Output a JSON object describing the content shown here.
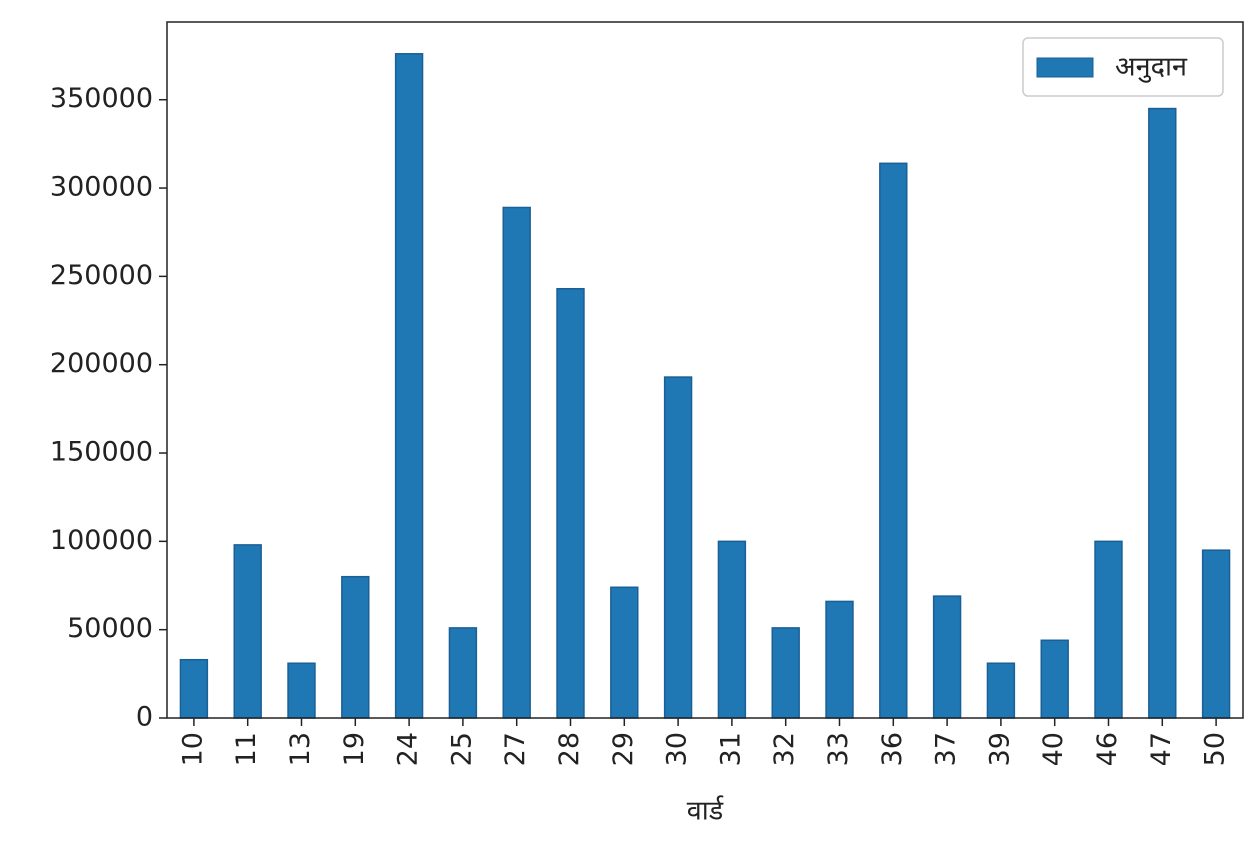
{
  "chart_data": {
    "type": "bar",
    "xlabel": "वार्ड",
    "categories": [
      "10",
      "11",
      "13",
      "19",
      "24",
      "25",
      "27",
      "28",
      "29",
      "30",
      "31",
      "32",
      "33",
      "36",
      "37",
      "39",
      "40",
      "46",
      "47",
      "50"
    ],
    "series": [
      {
        "name": "अनुदान",
        "color": "#1f77b4",
        "values": [
          33000,
          98000,
          31000,
          80000,
          376000,
          51000,
          289000,
          243000,
          74000,
          193000,
          100000,
          51000,
          66000,
          314000,
          69000,
          31000,
          44000,
          100000,
          345000,
          95000
        ]
      }
    ],
    "ylim": [
      0,
      394000
    ],
    "yticks": [
      0,
      50000,
      100000,
      150000,
      200000,
      250000,
      300000,
      350000
    ],
    "legend": "upper right"
  }
}
